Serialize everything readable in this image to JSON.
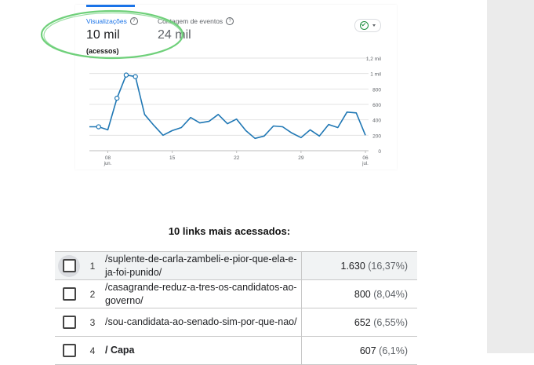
{
  "analytics": {
    "metrics": [
      {
        "label": "Visualizações",
        "value": "10 mil",
        "note": "(acessos)",
        "color": "#1a73e8",
        "value_color": "#202124"
      },
      {
        "label": "Contagem de eventos",
        "value": "24 mil",
        "color": "#5f6368",
        "value_color": "#5f6368"
      }
    ],
    "status_icon": "check-circle-icon",
    "dropdown_icon": "caret-down-icon",
    "highlight_color": "#6fd07a",
    "line_color": "#1f77b4"
  },
  "chart_data": {
    "type": "line",
    "x_ticks": [
      {
        "day": "08",
        "month": "jun."
      },
      {
        "day": "15",
        "month": ""
      },
      {
        "day": "22",
        "month": ""
      },
      {
        "day": "29",
        "month": ""
      },
      {
        "day": "06",
        "month": "jul."
      }
    ],
    "y_ticks": [
      "0",
      "200",
      "400",
      "600",
      "800",
      "1 mil",
      "1,2 mil"
    ],
    "ylim": [
      0,
      1200
    ],
    "series": [
      {
        "values": [
          310,
          310,
          270,
          680,
          980,
          960,
          470,
          330,
          200,
          260,
          300,
          430,
          360,
          380,
          470,
          350,
          410,
          260,
          160,
          190,
          320,
          310,
          230,
          170,
          270,
          190,
          340,
          300,
          500,
          490,
          200
        ],
        "marked_points": [
          1,
          3,
          4,
          5
        ]
      }
    ],
    "grid": true
  },
  "table": {
    "title": "10 links mais acessados:",
    "rows": [
      {
        "num": "1",
        "path": "/suplente-de-carla-zambeli-e-pior-que-ela-e-ja-foi-punido/",
        "count": "1.630",
        "pct": "(16,37%)"
      },
      {
        "num": "2",
        "path": "/casagrande-reduz-a-tres-os-candidatos-ao-governo/",
        "count": "800",
        "pct": "(8,04%)"
      },
      {
        "num": "3",
        "path": "/sou-candidata-ao-senado-sim-por-que-nao/",
        "count": "652",
        "pct": "(6,55%)"
      },
      {
        "num": "4",
        "path": "/ Capa",
        "count": "607",
        "pct": "(6,1%)"
      }
    ]
  }
}
